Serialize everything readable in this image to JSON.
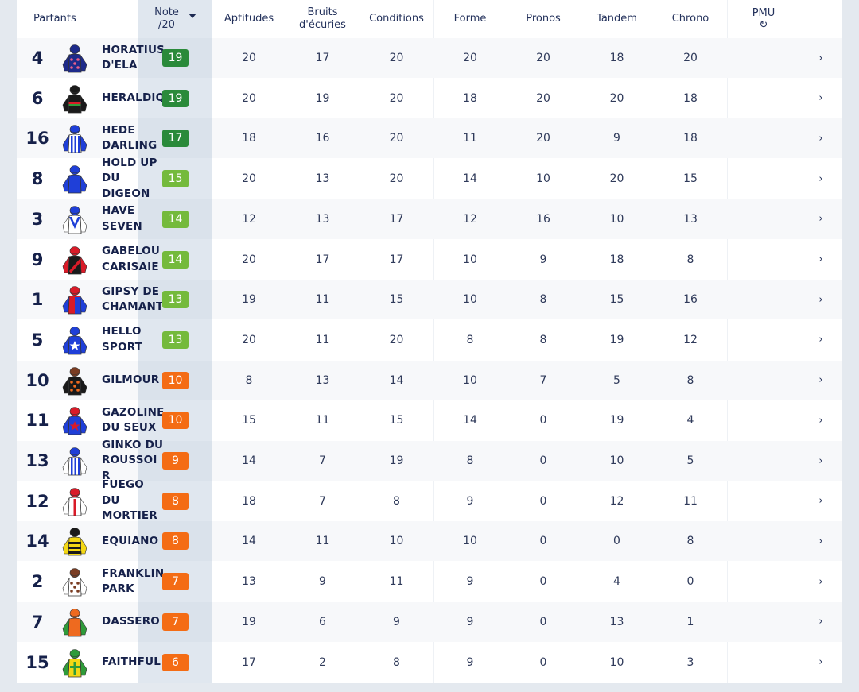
{
  "header": {
    "partants": "Partants",
    "note_line1": "Note",
    "note_line2": "/20",
    "sort_icon": "caret-down-icon",
    "aptitudes": "Aptitudes",
    "bruits_line1": "Bruits",
    "bruits_line2": "d'écuries",
    "conditions": "Conditions",
    "forme": "Forme",
    "pronos": "Pronos",
    "tandem": "Tandem",
    "chrono": "Chrono",
    "pmu": "PMU",
    "pmu_icon": "refresh-icon",
    "pmu_refresh_glyph": "↻"
  },
  "colors": {
    "note_high": "#2a8a3a",
    "note_good": "#74ba3c",
    "note_low": "#f46c14"
  },
  "rows": [
    {
      "num": "4",
      "name": "HORATIUS D'ELA",
      "note": "19",
      "note_level": "high",
      "aptitudes": "20",
      "bruits": "17",
      "conditions": "20",
      "forme": "20",
      "pronos": "20",
      "tandem": "18",
      "chrono": "20",
      "pmu": "›"
    },
    {
      "num": "6",
      "name": "HERALDIQ",
      "note": "19",
      "note_level": "high",
      "aptitudes": "20",
      "bruits": "19",
      "conditions": "20",
      "forme": "18",
      "pronos": "20",
      "tandem": "20",
      "chrono": "18",
      "pmu": "›"
    },
    {
      "num": "16",
      "name": "HEDE DARLING",
      "note": "17",
      "note_level": "high",
      "aptitudes": "18",
      "bruits": "16",
      "conditions": "20",
      "forme": "11",
      "pronos": "20",
      "tandem": "9",
      "chrono": "18",
      "pmu": "›"
    },
    {
      "num": "8",
      "name": "HOLD UP DU DIGEON",
      "note": "15",
      "note_level": "good",
      "aptitudes": "20",
      "bruits": "13",
      "conditions": "20",
      "forme": "14",
      "pronos": "10",
      "tandem": "20",
      "chrono": "15",
      "pmu": "›"
    },
    {
      "num": "3",
      "name": "HAVE SEVEN",
      "note": "14",
      "note_level": "good",
      "aptitudes": "12",
      "bruits": "13",
      "conditions": "17",
      "forme": "12",
      "pronos": "16",
      "tandem": "10",
      "chrono": "13",
      "pmu": "›"
    },
    {
      "num": "9",
      "name": "GABELOU CARISAIE",
      "note": "14",
      "note_level": "good",
      "aptitudes": "20",
      "bruits": "17",
      "conditions": "17",
      "forme": "10",
      "pronos": "9",
      "tandem": "18",
      "chrono": "8",
      "pmu": "›"
    },
    {
      "num": "1",
      "name": "GIPSY DE CHAMANT",
      "note": "13",
      "note_level": "good",
      "aptitudes": "19",
      "bruits": "11",
      "conditions": "15",
      "forme": "10",
      "pronos": "8",
      "tandem": "15",
      "chrono": "16",
      "pmu": "›"
    },
    {
      "num": "5",
      "name": "HELLO SPORT",
      "note": "13",
      "note_level": "good",
      "aptitudes": "20",
      "bruits": "11",
      "conditions": "20",
      "forme": "8",
      "pronos": "8",
      "tandem": "19",
      "chrono": "12",
      "pmu": "›"
    },
    {
      "num": "10",
      "name": "GILMOUR",
      "note": "10",
      "note_level": "low",
      "aptitudes": "8",
      "bruits": "13",
      "conditions": "14",
      "forme": "10",
      "pronos": "7",
      "tandem": "5",
      "chrono": "8",
      "pmu": "›"
    },
    {
      "num": "11",
      "name": "GAZOLINE DU SEUX",
      "note": "10",
      "note_level": "low",
      "aptitudes": "15",
      "bruits": "11",
      "conditions": "15",
      "forme": "14",
      "pronos": "0",
      "tandem": "19",
      "chrono": "4",
      "pmu": "›"
    },
    {
      "num": "13",
      "name": "GINKO DU ROUSSOIR",
      "note": "9",
      "note_level": "low",
      "aptitudes": "14",
      "bruits": "7",
      "conditions": "19",
      "forme": "8",
      "pronos": "0",
      "tandem": "10",
      "chrono": "5",
      "pmu": "›"
    },
    {
      "num": "12",
      "name": "FUEGO DU MORTIER",
      "note": "8",
      "note_level": "low",
      "aptitudes": "18",
      "bruits": "7",
      "conditions": "8",
      "forme": "9",
      "pronos": "0",
      "tandem": "12",
      "chrono": "11",
      "pmu": "›"
    },
    {
      "num": "14",
      "name": "EQUIANO",
      "note": "8",
      "note_level": "low",
      "aptitudes": "14",
      "bruits": "11",
      "conditions": "10",
      "forme": "10",
      "pronos": "0",
      "tandem": "0",
      "chrono": "8",
      "pmu": "›"
    },
    {
      "num": "2",
      "name": "FRANKLIN PARK",
      "note": "7",
      "note_level": "low",
      "aptitudes": "13",
      "bruits": "9",
      "conditions": "11",
      "forme": "9",
      "pronos": "0",
      "tandem": "4",
      "chrono": "0",
      "pmu": "›"
    },
    {
      "num": "7",
      "name": "DASSERO",
      "note": "7",
      "note_level": "low",
      "aptitudes": "19",
      "bruits": "6",
      "conditions": "9",
      "forme": "9",
      "pronos": "0",
      "tandem": "13",
      "chrono": "1",
      "pmu": "›"
    },
    {
      "num": "15",
      "name": "FAITHFUL",
      "note": "6",
      "note_level": "low",
      "aptitudes": "17",
      "bruits": "2",
      "conditions": "8",
      "forme": "9",
      "pronos": "0",
      "tandem": "10",
      "chrono": "3",
      "pmu": "›"
    }
  ]
}
